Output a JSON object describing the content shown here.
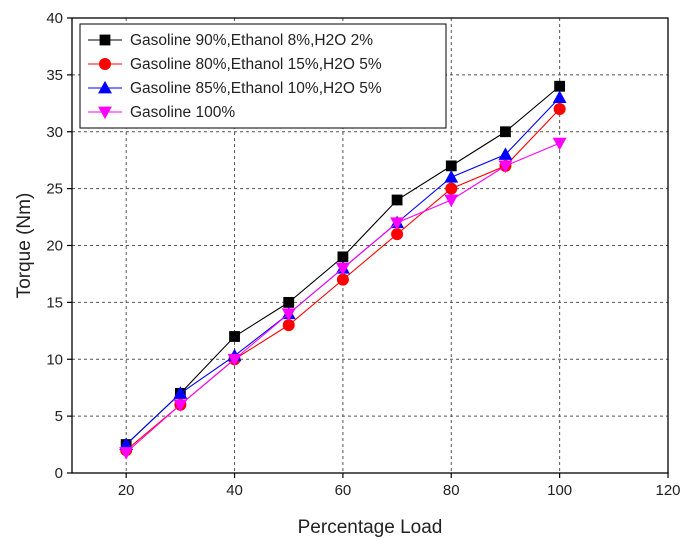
{
  "chart_data": {
    "type": "line",
    "title": "",
    "xlabel": "Percentage Load",
    "ylabel": "Torque (Nm)",
    "xlim": [
      10,
      120
    ],
    "ylim": [
      0,
      40
    ],
    "xticks": [
      20,
      40,
      60,
      80,
      100,
      120
    ],
    "yticks": [
      0,
      5,
      10,
      15,
      20,
      25,
      30,
      35,
      40
    ],
    "grid": true,
    "legend_position": "top-left",
    "x": [
      20,
      30,
      40,
      50,
      60,
      70,
      80,
      90,
      100
    ],
    "series": [
      {
        "name": "Gasoline 90%,Ethanol  8%,H2O 2%",
        "color": "#000000",
        "marker": "square",
        "values": [
          2.5,
          7,
          12,
          15,
          19,
          24,
          27,
          30,
          34
        ]
      },
      {
        "name": "Gasoline 80%,Ethanol 15%,H2O 5%",
        "color": "#ff0000",
        "marker": "circle",
        "values": [
          2,
          6,
          10,
          13,
          17,
          21,
          25,
          27,
          32
        ]
      },
      {
        "name": "Gasoline 85%,Ethanol 10%,H2O 5%",
        "color": "#0000ff",
        "marker": "triangle-up",
        "values": [
          2.5,
          7,
          10.3,
          14,
          18,
          22,
          26,
          28,
          33
        ]
      },
      {
        "name": "Gasoline 100%",
        "color": "#ff00ff",
        "marker": "triangle-down",
        "values": [
          1.8,
          6,
          10,
          14,
          18,
          22,
          24,
          27,
          29
        ]
      }
    ]
  }
}
